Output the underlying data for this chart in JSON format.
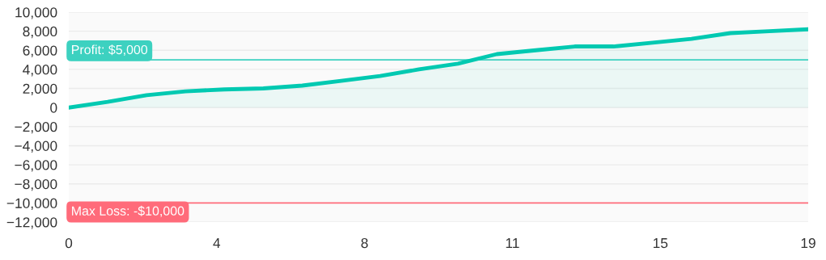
{
  "chart_data": {
    "type": "area",
    "x": [
      0,
      1,
      2,
      3,
      4,
      5,
      6,
      7,
      8,
      9,
      10,
      11,
      12,
      13,
      14,
      15,
      16,
      17,
      18,
      19
    ],
    "series": [
      {
        "color": "#00c9b1",
        "values": [
          0,
          600,
          1300,
          1700,
          1900,
          2000,
          2300,
          2800,
          3300,
          4000,
          4600,
          5600,
          6000,
          6400,
          6400,
          6800,
          7200,
          7800,
          8000,
          8200
        ]
      }
    ],
    "xlim": [
      0,
      19
    ],
    "xticks": [
      0,
      {
        "value": 3.8,
        "label": "4"
      },
      {
        "value": 7.6,
        "label": "8"
      },
      {
        "value": 11.4,
        "label": "11"
      },
      {
        "value": 15.2,
        "label": "15"
      },
      19
    ],
    "ylim": [
      -12000,
      10000
    ],
    "yticks": [
      {
        "value": -12000,
        "label": "−12,000"
      },
      {
        "value": -10000,
        "label": "−10,000"
      },
      {
        "value": -8000,
        "label": "−8,000"
      },
      {
        "value": -6000,
        "label": "−6,000"
      },
      {
        "value": -4000,
        "label": "−4,000"
      },
      {
        "value": -2000,
        "label": "−2,000"
      },
      0,
      {
        "value": 2000,
        "label": "2,000"
      },
      {
        "value": 4000,
        "label": "4,000"
      },
      {
        "value": 6000,
        "label": "6,000"
      },
      {
        "value": 8000,
        "label": "8,000"
      },
      {
        "value": 10000,
        "label": "10,000"
      }
    ],
    "ref_lines": [
      {
        "axis": "y",
        "value": 5000,
        "label": "Profit: $5,000",
        "color": "#3dd1c0"
      },
      {
        "axis": "y",
        "value": -10000,
        "label": "Max Loss: -$10,000",
        "color": "#ff6b7a"
      }
    ],
    "grid": "y",
    "marker": "none",
    "line_style": "solid"
  }
}
